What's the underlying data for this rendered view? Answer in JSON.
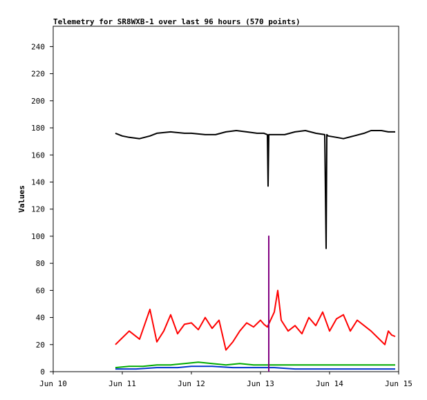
{
  "chart_data": {
    "type": "line",
    "title": "Telemetry for SR8WXB-1 over last 96 hours (570 points)",
    "ylabel": "Values",
    "xlabel": "",
    "ylim": [
      0,
      255
    ],
    "xlim": [
      10,
      15
    ],
    "x_ticks": [
      10,
      11,
      12,
      13,
      14,
      15
    ],
    "x_tick_labels": [
      "Jun 10",
      "Jun 11",
      "Jun 12",
      "Jun 13",
      "Jun 14",
      "Jun 15"
    ],
    "y_ticks": [
      0,
      20,
      40,
      60,
      80,
      100,
      120,
      140,
      160,
      180,
      200,
      220,
      240
    ],
    "grid": false,
    "series": [
      {
        "color": "#000000",
        "x": [
          10.9,
          11.0,
          11.1,
          11.25,
          11.4,
          11.5,
          11.7,
          11.9,
          12.0,
          12.2,
          12.35,
          12.5,
          12.65,
          12.8,
          12.95,
          13.05,
          13.1,
          13.11,
          13.12,
          13.2,
          13.35,
          13.5,
          13.65,
          13.8,
          13.93,
          13.95,
          13.96,
          13.98,
          14.1,
          14.2,
          14.35,
          14.5,
          14.6,
          14.75,
          14.85,
          14.95
        ],
        "y": [
          176,
          174,
          173,
          172,
          174,
          176,
          177,
          176,
          176,
          175,
          175,
          177,
          178,
          177,
          176,
          176,
          175,
          137,
          175,
          175,
          175,
          177,
          178,
          176,
          175,
          91,
          175,
          174,
          173,
          172,
          174,
          176,
          178,
          178,
          177,
          177
        ]
      },
      {
        "color": "#ff0000",
        "x": [
          10.9,
          11.0,
          11.1,
          11.25,
          11.4,
          11.5,
          11.6,
          11.7,
          11.8,
          11.9,
          12.0,
          12.1,
          12.2,
          12.3,
          12.4,
          12.5,
          12.6,
          12.7,
          12.8,
          12.9,
          13.0,
          13.05,
          13.1,
          13.2,
          13.25,
          13.3,
          13.4,
          13.5,
          13.6,
          13.7,
          13.8,
          13.9,
          14.0,
          14.1,
          14.2,
          14.3,
          14.4,
          14.5,
          14.6,
          14.7,
          14.8,
          14.85,
          14.9,
          14.95
        ],
        "y": [
          20,
          25,
          30,
          24,
          46,
          22,
          30,
          42,
          28,
          35,
          36,
          31,
          40,
          32,
          38,
          16,
          22,
          30,
          36,
          33,
          38,
          35,
          33,
          44,
          60,
          38,
          30,
          34,
          28,
          40,
          34,
          44,
          30,
          39,
          42,
          30,
          38,
          34,
          30,
          25,
          20,
          30,
          27,
          26
        ]
      },
      {
        "color": "#00aa00",
        "x": [
          10.9,
          11.1,
          11.3,
          11.5,
          11.7,
          11.9,
          12.1,
          12.3,
          12.5,
          12.7,
          12.9,
          13.1,
          13.3,
          13.5,
          13.7,
          13.9,
          14.1,
          14.3,
          14.5,
          14.7,
          14.95
        ],
        "y": [
          3,
          4,
          4,
          5,
          5,
          6,
          7,
          6,
          5,
          6,
          5,
          5,
          5,
          5,
          5,
          5,
          5,
          5,
          5,
          5,
          5
        ]
      },
      {
        "color": "#0033cc",
        "x": [
          10.9,
          11.2,
          11.5,
          11.8,
          12.0,
          12.3,
          12.6,
          12.9,
          13.2,
          13.5,
          13.8,
          14.1,
          14.4,
          14.7,
          14.95
        ],
        "y": [
          2,
          2,
          3,
          3,
          4,
          4,
          3,
          3,
          3,
          2,
          2,
          2,
          2,
          2,
          2
        ]
      },
      {
        "color": "#800080",
        "x": [
          13.12,
          13.12,
          13.12
        ],
        "y": [
          0,
          100,
          0
        ]
      }
    ]
  }
}
